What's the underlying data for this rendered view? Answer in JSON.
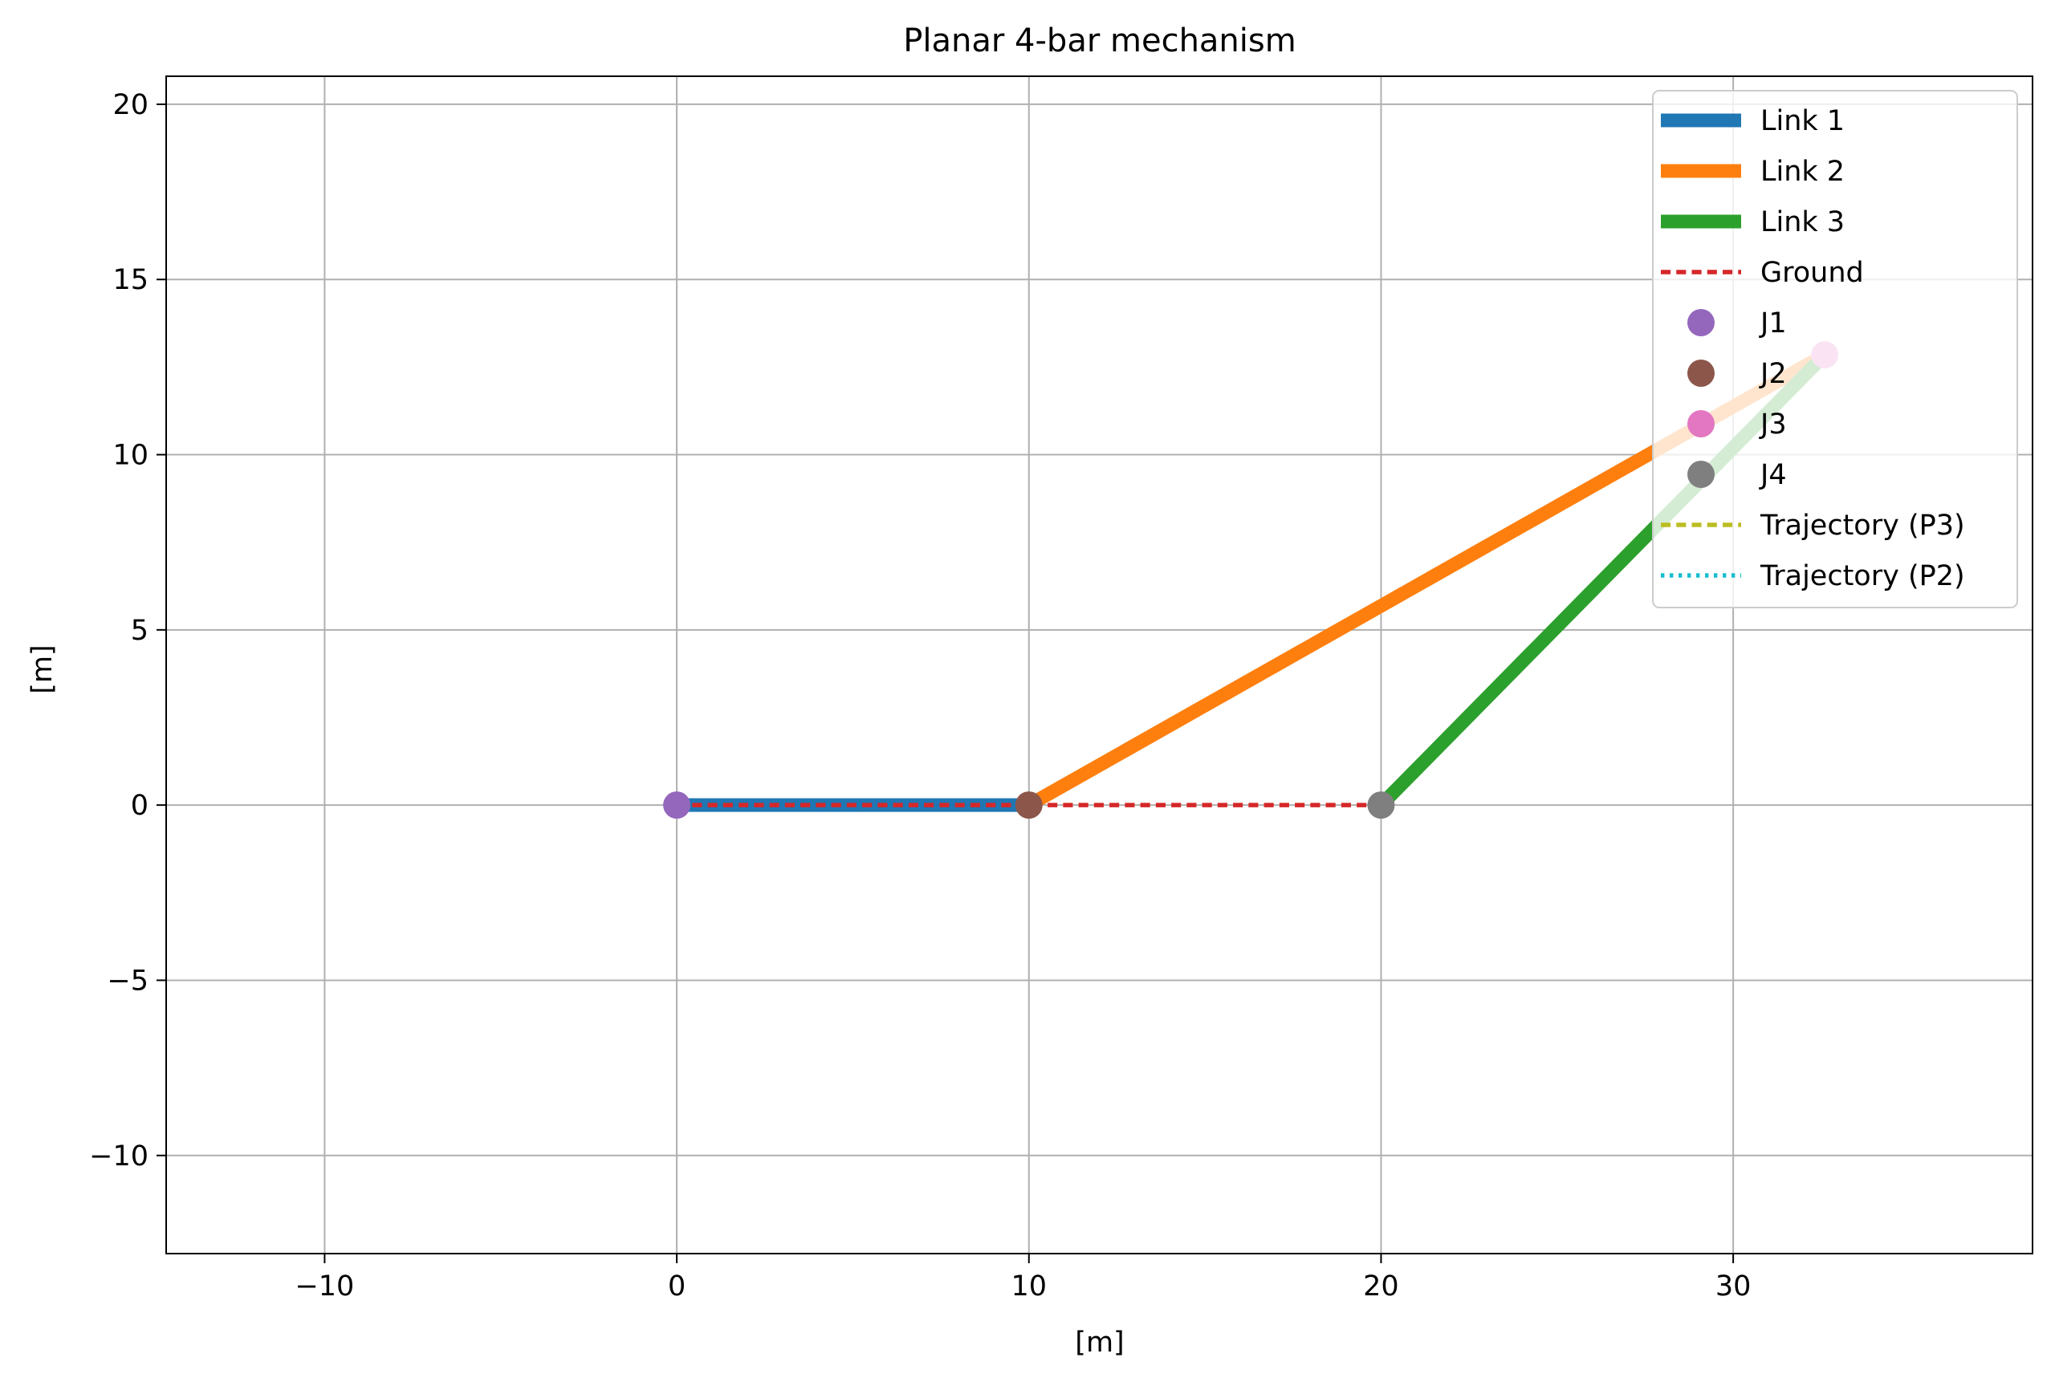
{
  "chart_data": {
    "type": "line",
    "title": "Planar 4-bar mechanism",
    "xlabel": "[m]",
    "ylabel": "[m]",
    "xlim": [
      -14.5,
      38.5
    ],
    "ylim": [
      -12.8,
      20.8
    ],
    "xticks": [
      -10,
      0,
      10,
      20,
      30
    ],
    "yticks": [
      -10,
      -5,
      0,
      5,
      10,
      15,
      20
    ],
    "x_tick_labels": [
      "−10",
      "0",
      "10",
      "20",
      "30"
    ],
    "y_tick_labels": [
      "−10",
      "−5",
      "0",
      "5",
      "10",
      "15",
      "20"
    ],
    "grid": true,
    "legend_position": "top-right",
    "series": [
      {
        "name": "Link 1",
        "kind": "line",
        "style": "solid",
        "color": "#1f77b4",
        "x": [
          0,
          10
        ],
        "y": [
          0,
          0
        ]
      },
      {
        "name": "Link 2",
        "kind": "line",
        "style": "solid",
        "color": "#ff7f0e",
        "x": [
          10,
          32.6
        ],
        "y": [
          0,
          12.85
        ]
      },
      {
        "name": "Link 3",
        "kind": "line",
        "style": "solid",
        "color": "#2ca02c",
        "x": [
          20,
          32.6
        ],
        "y": [
          0,
          12.85
        ]
      },
      {
        "name": "Ground",
        "kind": "line",
        "style": "dashed",
        "color": "#d62728",
        "x": [
          0,
          20
        ],
        "y": [
          0,
          0
        ]
      },
      {
        "name": "J1",
        "kind": "marker",
        "color": "#9467bd",
        "x": [
          0
        ],
        "y": [
          0
        ]
      },
      {
        "name": "J2",
        "kind": "marker",
        "color": "#8c564b",
        "x": [
          10
        ],
        "y": [
          0
        ]
      },
      {
        "name": "J3",
        "kind": "marker",
        "color": "#e377c2",
        "x": [
          32.6
        ],
        "y": [
          12.85
        ]
      },
      {
        "name": "J4",
        "kind": "marker",
        "color": "#7f7f7f",
        "x": [
          20
        ],
        "y": [
          0
        ]
      },
      {
        "name": "Trajectory (P3)",
        "kind": "line",
        "style": "dashed",
        "color": "#bcbd22",
        "x": [],
        "y": []
      },
      {
        "name": "Trajectory (P2)",
        "kind": "line",
        "style": "dotted",
        "color": "#17becf",
        "x": [],
        "y": []
      }
    ]
  }
}
